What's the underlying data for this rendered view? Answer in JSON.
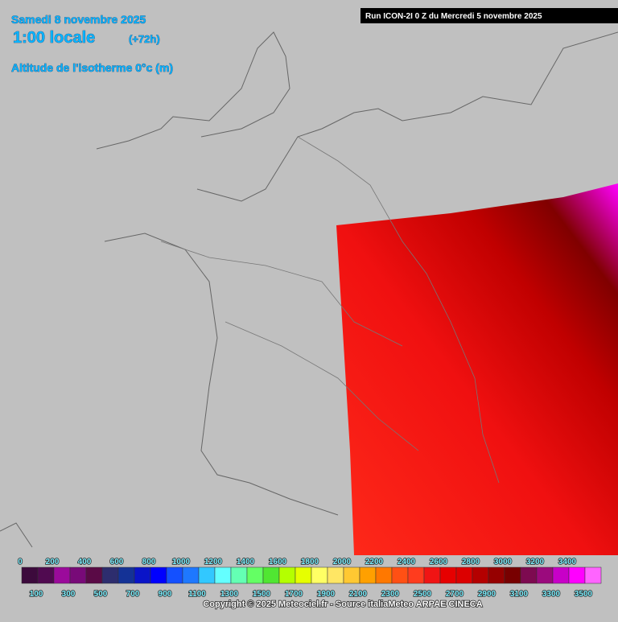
{
  "header": {
    "date": "Samedi 8 novembre 2025",
    "time": "1:00 locale",
    "lead": "(+72h)",
    "field": "Altitude de l'isotherme 0°c (m)",
    "run": "Run ICON-2I 0 Z du Mercredi 5 novembre 2025"
  },
  "legend": {
    "levels": [
      0,
      100,
      200,
      300,
      400,
      500,
      600,
      700,
      800,
      900,
      1000,
      1100,
      1200,
      1300,
      1400,
      1500,
      1600,
      1700,
      1800,
      1900,
      2000,
      2100,
      2200,
      2300,
      2400,
      2500,
      2600,
      2700,
      2800,
      2900,
      3000,
      3100,
      3200,
      3300,
      3400,
      3500
    ],
    "colors": [
      "#3c0a3c",
      "#500a50",
      "#9b0a9b",
      "#780a78",
      "#5a0a46",
      "#2d2d6e",
      "#143296",
      "#0a14c8",
      "#0000ff",
      "#1450ff",
      "#1e78ff",
      "#32c8ff",
      "#64ffff",
      "#64ffb4",
      "#64ff64",
      "#50e632",
      "#b4ff00",
      "#e6ff00",
      "#ffff64",
      "#ffe664",
      "#ffc832",
      "#ffa000",
      "#ff7800",
      "#ff5014",
      "#ff3c1e",
      "#f01414",
      "#e60000",
      "#dc0000",
      "#b40000",
      "#960000",
      "#780000",
      "#7d0a50",
      "#9b0a7d",
      "#c800c8",
      "#ff00ff",
      "#ff64ff"
    ]
  },
  "footer": {
    "copyright": "Copyright © 2025 Meteociel.fr - Source italiaMeteo ARPAE CINECA"
  }
}
